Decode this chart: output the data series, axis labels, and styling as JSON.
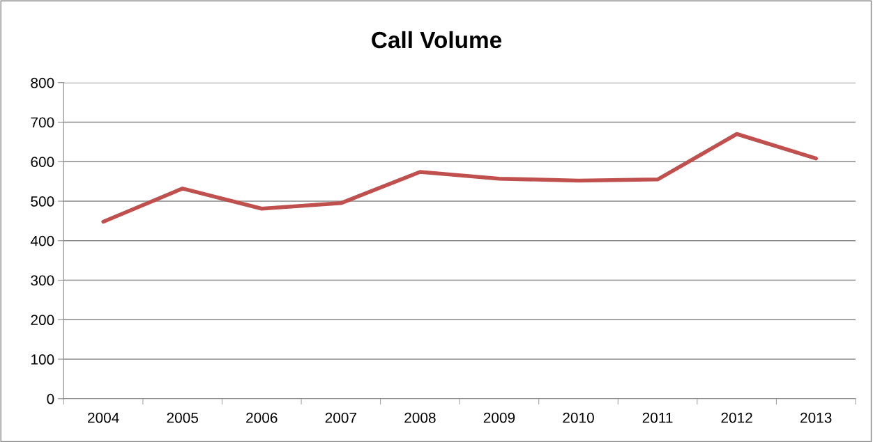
{
  "chart_data": {
    "type": "line",
    "title": "Call Volume",
    "categories": [
      "2004",
      "2005",
      "2006",
      "2007",
      "2008",
      "2009",
      "2010",
      "2011",
      "2012",
      "2013"
    ],
    "series": [
      {
        "color": "#c0504d",
        "values": [
          448,
          532,
          481,
          495,
          574,
          557,
          552,
          555,
          670,
          608
        ]
      }
    ],
    "ylim": [
      0,
      800
    ],
    "yticks": [
      0,
      100,
      200,
      300,
      400,
      500,
      600,
      700,
      800
    ],
    "grid": "y",
    "legend": false,
    "marker": "none",
    "line_style": "solid"
  }
}
